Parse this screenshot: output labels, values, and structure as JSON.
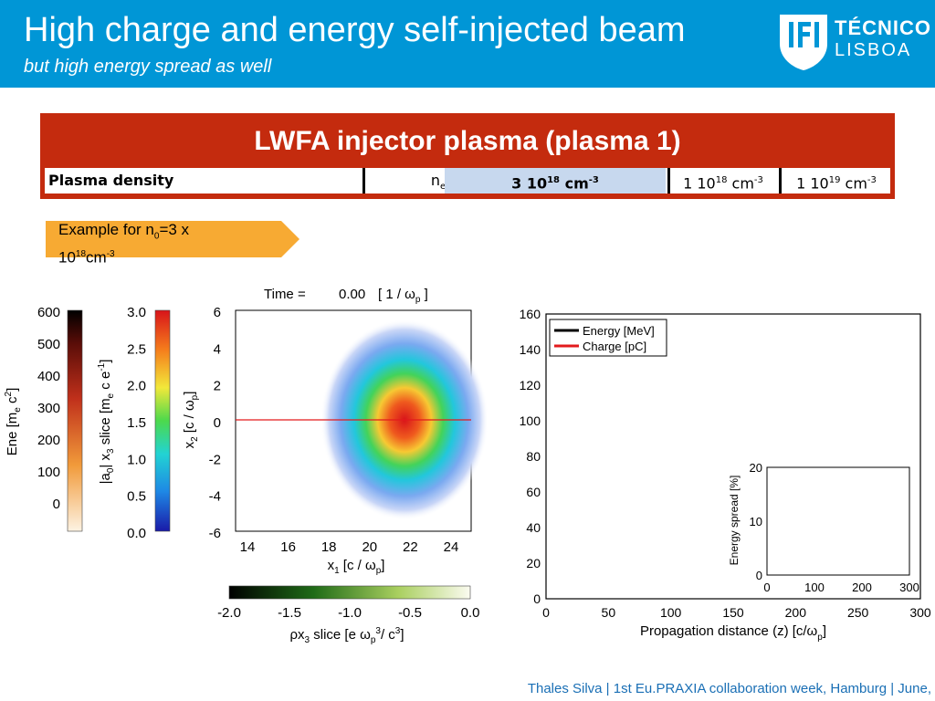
{
  "header": {
    "title": "High charge and energy self-injected beam",
    "subtitle": "but high energy spread as well",
    "logo": {
      "line1": "TÉCNICO",
      "line2": "LISBOA",
      "mark": "IST-logo"
    }
  },
  "table": {
    "title": "LWFA injector plasma (plasma 1)",
    "row_label": "Plasma density",
    "symbol": "n",
    "symbol_sub": "e",
    "highlight": {
      "mant": "3 10",
      "exp": "18",
      "unit": "cm",
      "unit_exp": "-3"
    },
    "value2": {
      "mant": "1 10",
      "exp": "18",
      "unit": "cm",
      "unit_exp": "-3"
    },
    "value3": {
      "mant": "1 10",
      "exp": "19",
      "unit": "cm",
      "unit_exp": "-3"
    }
  },
  "callout": {
    "line1": "Example for n",
    "sub": "0",
    "line1b": "=3 x",
    "line2a": "10",
    "line2exp": "18",
    "line2b": "cm",
    "line2exp2": "-3"
  },
  "simulation": {
    "time_label": "Time =",
    "time_value": "0.00",
    "time_unit": "[ 1 / ω",
    "time_unit_sub": "p",
    "time_unit_end": " ]",
    "ene_ticks": [
      "600",
      "500",
      "400",
      "300",
      "200",
      "100",
      "0"
    ],
    "ene_label": "Ene [m",
    "ene_label_sub": "e",
    "ene_label_end": " c",
    "ene_label_sup": "2",
    "ene_label_close": "]",
    "a0_ticks": [
      "3.0",
      "2.5",
      "2.0",
      "1.5",
      "1.0",
      "0.5",
      "0.0"
    ],
    "a0_label": "|a",
    "a0_label_sub": "0",
    "a0_label_mid": "| x",
    "a0_label_sub2": "3",
    "a0_label_end": " slice [m",
    "a0_label_sub3": "e",
    "a0_label_tail": " c e",
    "a0_label_sup": "-1",
    "a0_label_close": "]",
    "x2_ticks": [
      "6",
      "4",
      "2",
      "0",
      "-2",
      "-4",
      "-6"
    ],
    "x2_label": "x",
    "x2_label_sub": "2",
    "x2_label_end": " [c / ω",
    "x2_label_sub2": "p",
    "x2_label_close": "]",
    "x1_ticks": [
      "14",
      "16",
      "18",
      "20",
      "22",
      "24"
    ],
    "x1_label": "x",
    "x1_label_sub": "1",
    "x1_label_end": " [c / ω",
    "x1_label_sub2": "p",
    "x1_label_close": "]",
    "rho_ticks": [
      "-2.0",
      "-1.5",
      "-1.0",
      "-0.5",
      "0.0"
    ],
    "rho_label": "ρx",
    "rho_label_sub": "3",
    "rho_label_end": " slice [e ω",
    "rho_label_sub2": "p",
    "rho_label_sup": "3",
    "rho_label_mid": "/ c",
    "rho_label_sup2": "3",
    "rho_label_close": "]"
  },
  "chart_data": {
    "type": "line",
    "xlabel": "Propagation distance (z) [c/ω",
    "xlabel_sub": "p",
    "xlabel_close": "]",
    "xlim": [
      0,
      300
    ],
    "ylim": [
      0,
      160
    ],
    "x_ticks": [
      0,
      50,
      100,
      150,
      200,
      250,
      300
    ],
    "y_ticks": [
      0,
      20,
      40,
      60,
      80,
      100,
      120,
      140,
      160
    ],
    "legend_position": "top-left",
    "series": [
      {
        "name": "Energy [MeV]",
        "color": "#000000",
        "x": [],
        "y": []
      },
      {
        "name": "Charge [pC]",
        "color": "#e31a1c",
        "x": [],
        "y": []
      }
    ],
    "inset": {
      "ylabel": "Energy spread [%]",
      "xlim": [
        0,
        300
      ],
      "ylim": [
        0,
        20
      ],
      "x_ticks": [
        0,
        100,
        200,
        300
      ],
      "y_ticks": [
        0,
        10,
        20
      ]
    }
  },
  "footer": {
    "text": "Thales Silva | 1st Eu.PRAXIA collaboration week, Hamburg | June,"
  }
}
